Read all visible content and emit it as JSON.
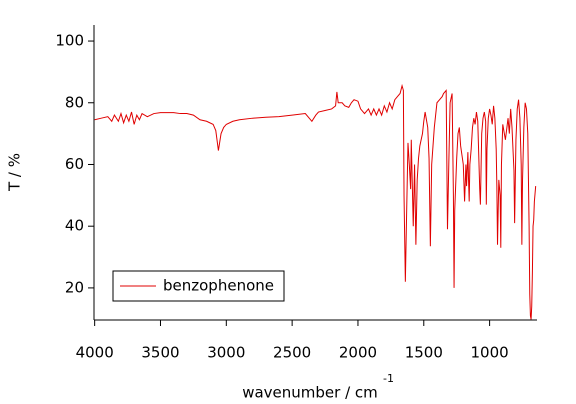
{
  "chart_data": {
    "type": "line",
    "xlabel": "wavenumber / cm",
    "xlabel_superscript": "-1",
    "ylabel": "T / %",
    "xlim": [
      4005,
      640
    ],
    "ylim": [
      9.6,
      105.2
    ],
    "xticks": [
      4000,
      3500,
      3000,
      2500,
      2000,
      1500,
      1000
    ],
    "yticks": [
      20,
      40,
      60,
      80,
      100
    ],
    "legend": "lower left",
    "x": [
      4000,
      3950,
      3900,
      3870,
      3850,
      3820,
      3800,
      3780,
      3760,
      3740,
      3720,
      3700,
      3680,
      3660,
      3640,
      3600,
      3550,
      3500,
      3400,
      3350,
      3300,
      3250,
      3200,
      3150,
      3100,
      3080,
      3060,
      3040,
      3020,
      3000,
      2950,
      2900,
      2800,
      2700,
      2600,
      2500,
      2400,
      2350,
      2320,
      2300,
      2250,
      2200,
      2170,
      2160,
      2150,
      2120,
      2100,
      2070,
      2050,
      2030,
      2000,
      1980,
      1950,
      1920,
      1900,
      1880,
      1860,
      1840,
      1820,
      1800,
      1780,
      1760,
      1740,
      1720,
      1700,
      1680,
      1665,
      1655,
      1650,
      1640,
      1630,
      1620,
      1610,
      1600,
      1595,
      1580,
      1570,
      1560,
      1550,
      1540,
      1530,
      1520,
      1510,
      1500,
      1490,
      1470,
      1460,
      1450,
      1440,
      1420,
      1400,
      1380,
      1360,
      1350,
      1330,
      1320,
      1310,
      1300,
      1285,
      1275,
      1270,
      1265,
      1250,
      1240,
      1230,
      1220,
      1200,
      1190,
      1180,
      1175,
      1165,
      1160,
      1155,
      1150,
      1140,
      1130,
      1120,
      1110,
      1100,
      1090,
      1075,
      1070,
      1060,
      1050,
      1040,
      1030,
      1025,
      1020,
      1010,
      1000,
      990,
      980,
      970,
      960,
      950,
      945,
      940,
      935,
      930,
      920,
      915,
      910,
      900,
      880,
      860,
      850,
      840,
      830,
      815,
      810,
      800,
      790,
      780,
      770,
      760,
      755,
      750,
      740,
      730,
      720,
      710,
      700,
      695,
      690,
      685,
      680,
      675,
      670,
      665,
      660,
      650
    ],
    "series": [
      {
        "name": "benzophenone",
        "color": "#e00000",
        "values": [
          74.5,
          75,
          75.5,
          74,
          76,
          74,
          76.5,
          73.5,
          76,
          74,
          77,
          73,
          76,
          74.5,
          76.5,
          75.5,
          76.5,
          76.8,
          76.8,
          76.5,
          76.5,
          76,
          74.5,
          74,
          73,
          71,
          64.5,
          70,
          72,
          73,
          74,
          74.5,
          75,
          75.3,
          75.5,
          76,
          76.5,
          74,
          76,
          77,
          77.5,
          78,
          79,
          83.5,
          80,
          80,
          79,
          78.5,
          80,
          81,
          80.5,
          78,
          76.5,
          78,
          76,
          78,
          76,
          78,
          76,
          79,
          77,
          80,
          78,
          81,
          82,
          83,
          85.5,
          84,
          50,
          22,
          45,
          67,
          60,
          52,
          68,
          40,
          60,
          34,
          55,
          62,
          66,
          68,
          70,
          74,
          77,
          72,
          62,
          33.5,
          60,
          72,
          80,
          81,
          82,
          83,
          84,
          39,
          60,
          80,
          83,
          50,
          20,
          45,
          62,
          70,
          72,
          66,
          60,
          48,
          60,
          53,
          64,
          55,
          48,
          60,
          65,
          72,
          75,
          73,
          77,
          74,
          52,
          47,
          70,
          75,
          77,
          74,
          47,
          65,
          75,
          78,
          76,
          73,
          79,
          75,
          65,
          53,
          34,
          45,
          55,
          50,
          33,
          60,
          73,
          68,
          75,
          70,
          78,
          72,
          58,
          41,
          68,
          78,
          81,
          75,
          60,
          34,
          55,
          72,
          80,
          78,
          70,
          40,
          18,
          11,
          9.8,
          14,
          25,
          40,
          42,
          48,
          53
        ]
      }
    ]
  }
}
